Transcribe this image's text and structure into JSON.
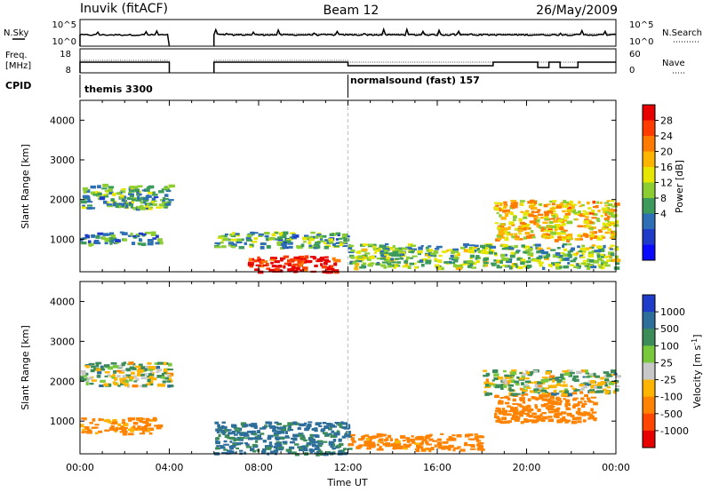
{
  "header": {
    "title": "Inuvik (fitACF)",
    "beam": "Beam 12",
    "date": "26/May/2009"
  },
  "nsky_panel": {
    "left_label": "N.Sky",
    "right_label": "N.Search",
    "left_ticks": [
      "10^5",
      "10^0"
    ],
    "right_ticks": [
      "10^5",
      "10^0"
    ]
  },
  "freq_panel": {
    "left_label_line1": "Freq.",
    "left_label_line2": "[MHz]",
    "right_label": "Nave",
    "left_ticks": [
      "18",
      "8"
    ],
    "right_ticks": [
      "60",
      "0"
    ]
  },
  "cpid": {
    "label": "CPID",
    "segments": [
      {
        "text": "themis 3300",
        "start_hour": 0
      },
      {
        "text": "normalsound (fast) 157",
        "start_hour": 12
      }
    ]
  },
  "power_colorbar": {
    "label": "Power [dB]",
    "ticks": [
      "28",
      "24",
      "20",
      "16",
      "12",
      "8",
      "4"
    ],
    "colors": [
      "#e60000",
      "#ff3c00",
      "#ff7a00",
      "#ffb400",
      "#e6e600",
      "#8ccd32",
      "#3c9b5a",
      "#2d6eb4",
      "#1e3cc8",
      "#0a0aff"
    ]
  },
  "velocity_colorbar": {
    "label": "Velocity [m s",
    "label_sup": "-1",
    "label_close": "]",
    "ticks": [
      "1000",
      "500",
      "100",
      "25",
      "-25",
      "-100",
      "-500",
      "-1000"
    ],
    "colors": [
      "#1e3cc8",
      "#2d6e9b",
      "#3c8c5a",
      "#78c83c",
      "#c8c8c8",
      "#ffb400",
      "#ff8200",
      "#ff4600",
      "#e60000"
    ]
  },
  "chart_data": [
    {
      "type": "heatmap",
      "title": "Power",
      "xlabel": "Time UT",
      "ylabel": "Slant Range [km]",
      "xlim_hours": [
        0,
        24
      ],
      "ylim": [
        180,
        4500
      ],
      "x_tick_labels": [
        "00:00",
        "04:00",
        "08:00",
        "12:00",
        "16:00",
        "20:00",
        "00:00"
      ],
      "y_tick_labels": [
        "4000",
        "3000",
        "2000",
        "1000"
      ],
      "data_gap_hours": [
        4,
        6
      ],
      "echo_regions": [
        {
          "t0": 0.0,
          "t1": 4.0,
          "r0": 1800,
          "r1": 2400,
          "power_db": 12
        },
        {
          "t0": 0.0,
          "t1": 3.5,
          "r0": 900,
          "r1": 1200,
          "power_db": 10
        },
        {
          "t0": 6.0,
          "t1": 12.0,
          "r0": 800,
          "r1": 1200,
          "power_db": 12
        },
        {
          "t0": 7.5,
          "t1": 11.5,
          "r0": 200,
          "r1": 600,
          "power_db": 30
        },
        {
          "t0": 12.0,
          "t1": 24.0,
          "r0": 300,
          "r1": 900,
          "power_db": 14
        },
        {
          "t0": 18.5,
          "t1": 24.0,
          "r0": 1000,
          "r1": 2000,
          "power_db": 20
        }
      ]
    },
    {
      "type": "heatmap",
      "title": "Velocity",
      "xlabel": "Time UT",
      "ylabel": "Slant Range [km]",
      "xlim_hours": [
        0,
        24
      ],
      "ylim": [
        180,
        4500
      ],
      "x_tick_labels": [
        "00:00",
        "04:00",
        "08:00",
        "12:00",
        "16:00",
        "20:00",
        "00:00"
      ],
      "y_tick_labels": [
        "4000",
        "3000",
        "2000",
        "1000"
      ],
      "data_gap_hours": [
        4,
        6
      ],
      "echo_regions": [
        {
          "t0": 0.0,
          "t1": 4.0,
          "r0": 1900,
          "r1": 2500,
          "velocity": 0
        },
        {
          "t0": 0.0,
          "t1": 3.5,
          "r0": 700,
          "r1": 1100,
          "velocity": -150
        },
        {
          "t0": 6.0,
          "t1": 12.0,
          "r0": 200,
          "r1": 1000,
          "velocity": 150
        },
        {
          "t0": 12.0,
          "t1": 18.0,
          "r0": 300,
          "r1": 700,
          "velocity": -200
        },
        {
          "t0": 18.5,
          "t1": 23.0,
          "r0": 1000,
          "r1": 1700,
          "velocity": -250
        },
        {
          "t0": 18.0,
          "t1": 24.0,
          "r0": 1700,
          "r1": 2300,
          "velocity": 0
        }
      ]
    }
  ]
}
